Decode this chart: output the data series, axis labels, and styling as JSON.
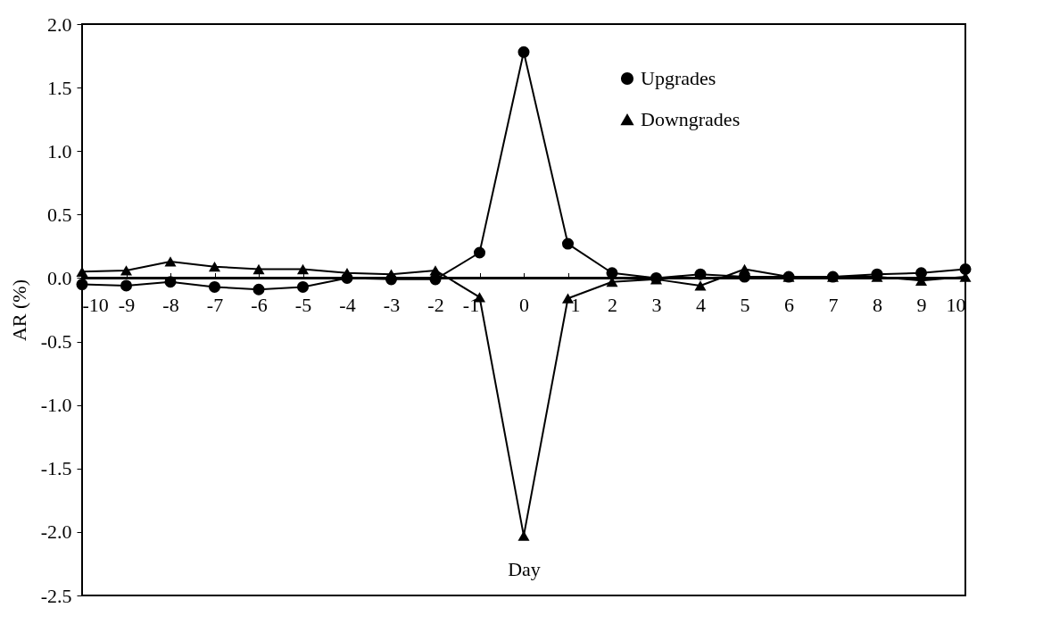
{
  "chart_data": {
    "type": "line",
    "xlabel": "Day",
    "ylabel": "AR (%)",
    "x": [
      -10,
      -9,
      -8,
      -7,
      -6,
      -5,
      -4,
      -3,
      -2,
      -1,
      0,
      1,
      2,
      3,
      4,
      5,
      6,
      7,
      8,
      9,
      10
    ],
    "series": [
      {
        "name": "Upgrades",
        "color": "#000000",
        "marker": "circle",
        "values": [
          -0.05,
          -0.06,
          -0.03,
          -0.07,
          -0.09,
          -0.07,
          0.0,
          -0.01,
          -0.01,
          0.2,
          1.78,
          0.27,
          0.04,
          0.0,
          0.03,
          0.01,
          0.01,
          0.01,
          0.03,
          0.04,
          0.07
        ]
      },
      {
        "name": "Downgrades",
        "color": "#000000",
        "marker": "triangle",
        "values": [
          0.05,
          0.06,
          0.13,
          0.09,
          0.07,
          0.07,
          0.04,
          0.03,
          0.06,
          -0.15,
          -2.03,
          -0.16,
          -0.03,
          -0.01,
          -0.06,
          0.07,
          0.01,
          0.01,
          0.01,
          -0.02,
          0.01
        ]
      }
    ],
    "xlim": [
      -10,
      10
    ],
    "xticks": [
      -10,
      -9,
      -8,
      -7,
      -6,
      -5,
      -4,
      -3,
      -2,
      -1,
      0,
      1,
      2,
      3,
      4,
      5,
      6,
      7,
      8,
      9,
      10
    ],
    "ylim": [
      -2.5,
      2.0
    ],
    "yticks": [
      -2.5,
      {
        "value": -2,
        "label": "-2.0"
      },
      -1.5,
      {
        "value": -1,
        "label": "-1.0"
      },
      -0.5,
      {
        "value": 0,
        "label": "0.0"
      },
      0.5,
      {
        "value": 1,
        "label": "1.0"
      },
      1.5,
      {
        "value": 2,
        "label": "2.0"
      }
    ],
    "grid": false,
    "legend": "top right",
    "line_style": "solid"
  }
}
